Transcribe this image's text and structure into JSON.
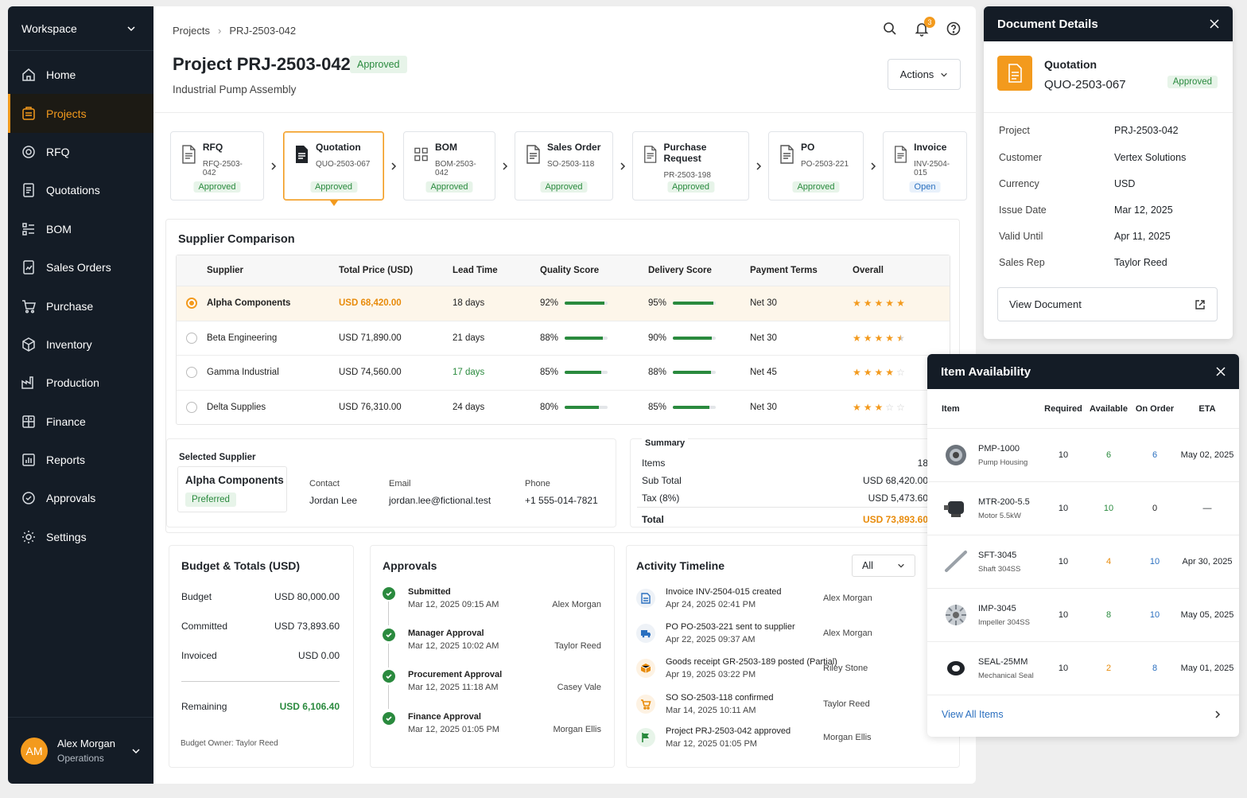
{
  "sidebar": {
    "workspace": "Workspace",
    "items": [
      {
        "label": "Home"
      },
      {
        "label": "Projects"
      },
      {
        "label": "RFQ"
      },
      {
        "label": "Quotations"
      },
      {
        "label": "BOM"
      },
      {
        "label": "Sales Orders"
      },
      {
        "label": "Purchase"
      },
      {
        "label": "Inventory"
      },
      {
        "label": "Production"
      },
      {
        "label": "Finance"
      },
      {
        "label": "Reports"
      },
      {
        "label": "Approvals"
      },
      {
        "label": "Settings"
      }
    ],
    "active_index": 1,
    "user": {
      "initials": "AM",
      "name": "Alex Morgan",
      "role": "Operations"
    }
  },
  "header": {
    "breadcrumb": [
      "Projects",
      "PRJ-2503-042"
    ],
    "title": "Project PRJ-2503-042",
    "status": "Approved",
    "subtitle": "Industrial Pump Assembly",
    "notif_count": "3",
    "actions_label": "Actions"
  },
  "flow": [
    {
      "name": "RFQ",
      "number": "RFQ-2503-042",
      "status": "Approved",
      "icon": "document-icon"
    },
    {
      "name": "Quotation",
      "number": "QUO-2503-067",
      "status": "Approved",
      "icon": "quotation-icon"
    },
    {
      "name": "BOM",
      "number": "BOM-2503-042",
      "status": "Approved",
      "icon": "bom-icon"
    },
    {
      "name": "Sales Order",
      "number": "SO-2503-118",
      "status": "Approved",
      "icon": "document-icon"
    },
    {
      "name": "Purchase Request",
      "number": "PR-2503-198",
      "status": "Approved",
      "icon": "document-icon"
    },
    {
      "name": "PO",
      "number": "PO-2503-221",
      "status": "Approved",
      "icon": "document-icon"
    },
    {
      "name": "Invoice",
      "number": "INV-2504-015",
      "status": "Open",
      "icon": "document-icon"
    }
  ],
  "supplier_comparison": {
    "title": "Supplier Comparison",
    "columns": [
      "Supplier",
      "Total Price (USD)",
      "Lead Time",
      "Quality Score",
      "Delivery Score",
      "Payment Terms",
      "Overall"
    ],
    "rows": [
      {
        "supplier": "Alpha Components",
        "price": "USD 68,420.00",
        "lead": "18 days",
        "quality": "92%",
        "quality_v": 92,
        "delivery": "95%",
        "delivery_v": 95,
        "terms": "Net 30",
        "rating": 5,
        "selected": true
      },
      {
        "supplier": "Beta Engineering",
        "price": "USD 71,890.00",
        "lead": "21 days",
        "quality": "88%",
        "quality_v": 88,
        "delivery": "90%",
        "delivery_v": 90,
        "terms": "Net 30",
        "rating": 4.5,
        "selected": false
      },
      {
        "supplier": "Gamma Industrial",
        "price": "USD 74,560.00",
        "lead": "17 days",
        "quality": "85%",
        "quality_v": 85,
        "delivery": "88%",
        "delivery_v": 88,
        "terms": "Net 45",
        "rating": 4,
        "selected": false
      },
      {
        "supplier": "Delta Supplies",
        "price": "USD 76,310.00",
        "lead": "24 days",
        "quality": "80%",
        "quality_v": 80,
        "delivery": "85%",
        "delivery_v": 85,
        "terms": "Net 30",
        "rating": 3,
        "selected": false
      }
    ]
  },
  "selected_supplier": {
    "label": "Selected Supplier",
    "name": "Alpha Components",
    "tag": "Preferred",
    "contact_label": "Contact",
    "contact": "Jordan Lee",
    "email_label": "Email",
    "email": "jordan.lee@fictional.test",
    "phone_label": "Phone",
    "phone": "+1 555-014-7821"
  },
  "summary": {
    "title": "Summary",
    "items_label": "Items",
    "items": "18",
    "subtotal_label": "Sub Total",
    "subtotal": "USD 68,420.00",
    "tax_label": "Tax (8%)",
    "tax": "USD 5,473.60",
    "total_label": "Total",
    "total": "USD 73,893.60"
  },
  "budget": {
    "title": "Budget & Totals (USD)",
    "budget_label": "Budget",
    "budget": "USD 80,000.00",
    "committed_label": "Committed",
    "committed": "USD 73,893.60",
    "invoiced_label": "Invoiced",
    "invoiced": "USD 0.00",
    "remaining_label": "Remaining",
    "remaining": "USD 6,106.40",
    "owner": "Budget Owner: Taylor Reed"
  },
  "approvals": {
    "title": "Approvals",
    "items": [
      {
        "step": "Submitted",
        "date": "Mar 12, 2025 09:15 AM",
        "by": "Alex Morgan"
      },
      {
        "step": "Manager Approval",
        "date": "Mar 12, 2025 10:02 AM",
        "by": "Taylor Reed"
      },
      {
        "step": "Procurement Approval",
        "date": "Mar 12, 2025 11:18 AM",
        "by": "Casey Vale"
      },
      {
        "step": "Finance Approval",
        "date": "Mar 12, 2025 01:05 PM",
        "by": "Morgan Ellis"
      }
    ]
  },
  "activity": {
    "title": "Activity Timeline",
    "filter": "All",
    "items": [
      {
        "text": "Invoice INV-2504-015 created",
        "date": "Apr 24, 2025 02:41 PM",
        "by": "Alex Morgan",
        "icon": "invoice-icon",
        "color": "#2a6fbf"
      },
      {
        "text": "PO PO-2503-221 sent to supplier",
        "date": "Apr 22, 2025 09:37 AM",
        "by": "Alex Morgan",
        "icon": "truck-icon",
        "color": "#2a6fbf"
      },
      {
        "text": "Goods receipt GR-2503-189 posted (Partial)",
        "date": "Apr 19, 2025 03:22 PM",
        "by": "Riley Stone",
        "icon": "box-icon",
        "color": "#e88b0a"
      },
      {
        "text": "SO SO-2503-118 confirmed",
        "date": "Mar 14, 2025 10:11 AM",
        "by": "Taylor Reed",
        "icon": "cart-icon",
        "color": "#e88b0a"
      },
      {
        "text": "Project PRJ-2503-042 approved",
        "date": "Mar 12, 2025 01:05 PM",
        "by": "Morgan Ellis",
        "icon": "flag-icon",
        "color": "#2a8a3e"
      }
    ]
  },
  "document_details": {
    "title": "Document Details",
    "doc_type": "Quotation",
    "doc_number": "QUO-2503-067",
    "status": "Approved",
    "fields": [
      {
        "label": "Project",
        "value": "PRJ-2503-042"
      },
      {
        "label": "Customer",
        "value": "Vertex Solutions"
      },
      {
        "label": "Currency",
        "value": "USD"
      },
      {
        "label": "Issue Date",
        "value": "Mar 12, 2025"
      },
      {
        "label": "Valid Until",
        "value": "Apr 11, 2025"
      },
      {
        "label": "Sales Rep",
        "value": "Taylor Reed"
      }
    ],
    "view_label": "View Document"
  },
  "item_availability": {
    "title": "Item Availability",
    "columns": [
      "Item",
      "Required",
      "Available",
      "On Order",
      "ETA"
    ],
    "rows": [
      {
        "code": "PMP-1000",
        "desc": "Pump Housing",
        "required": "10",
        "available": "6",
        "avail_color": "#2a8a3e",
        "on_order": "6",
        "order_color": "#2a6fbf",
        "eta": "May 02, 2025"
      },
      {
        "code": "MTR-200-5.5",
        "desc": "Motor 5.5kW",
        "required": "10",
        "available": "10",
        "avail_color": "#2a8a3e",
        "on_order": "0",
        "order_color": "#222",
        "eta": "—"
      },
      {
        "code": "SFT-3045",
        "desc": "Shaft 304SS",
        "required": "10",
        "available": "4",
        "avail_color": "#e88b0a",
        "on_order": "10",
        "order_color": "#2a6fbf",
        "eta": "Apr 30, 2025"
      },
      {
        "code": "IMP-3045",
        "desc": "Impeller 304SS",
        "required": "10",
        "available": "8",
        "avail_color": "#2a8a3e",
        "on_order": "10",
        "order_color": "#2a6fbf",
        "eta": "May 05, 2025"
      },
      {
        "code": "SEAL-25MM",
        "desc": "Mechanical Seal",
        "required": "10",
        "available": "2",
        "avail_color": "#e88b0a",
        "on_order": "8",
        "order_color": "#2a6fbf",
        "eta": "May 01, 2025"
      }
    ],
    "view_all": "View All Items"
  }
}
